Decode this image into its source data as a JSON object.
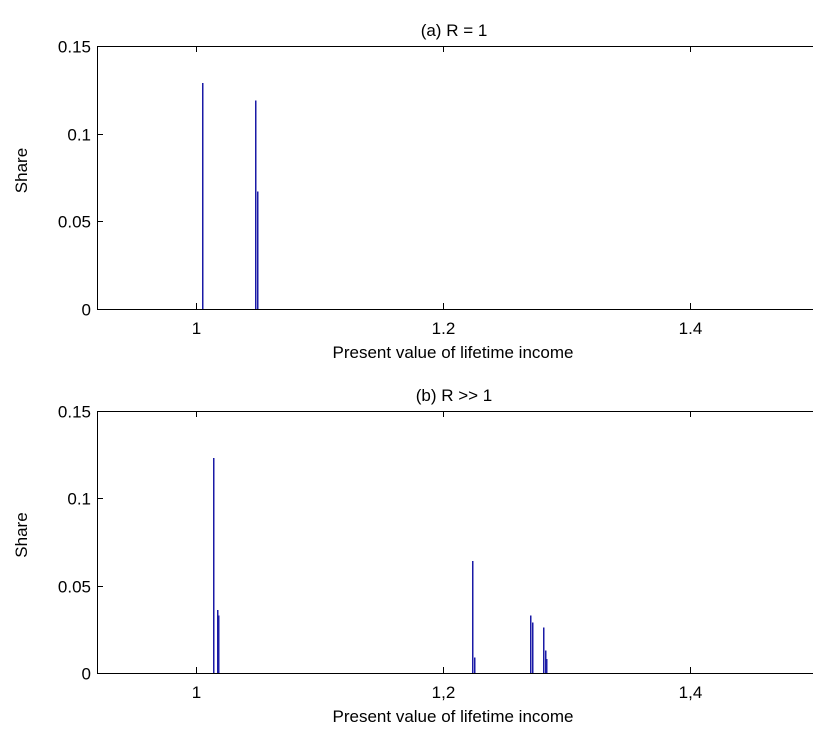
{
  "chart_data": [
    {
      "type": "bar",
      "title": "(a) R = 1",
      "xlabel": "Present value of lifetime income",
      "ylabel": "Share",
      "xlim": [
        0.92,
        1.5
      ],
      "ylim": [
        0,
        0.15
      ],
      "xticks": [
        1,
        1.2,
        1.4
      ],
      "xtick_labels": [
        "1",
        "1.2",
        "1.4"
      ],
      "yticks": [
        0,
        0.05,
        0.1,
        0.15
      ],
      "ytick_labels": [
        "0",
        "0.05",
        "0.1",
        "0.15"
      ],
      "grid": false,
      "bar_color": "#1a1aa6",
      "x": [
        1.005,
        1.048,
        1.05
      ],
      "values": [
        0.129,
        0.119,
        0.067
      ]
    },
    {
      "type": "bar",
      "title": "(b) R >> 1",
      "xlabel": "Present value of lifetime income",
      "ylabel": "Share",
      "xlim": [
        0.92,
        1.5
      ],
      "ylim": [
        0,
        0.15
      ],
      "xticks": [
        1,
        1.2,
        1.4
      ],
      "xtick_labels": [
        "1",
        "1,2",
        "1,4"
      ],
      "yticks": [
        0,
        0.05,
        0.1,
        0.15
      ],
      "ytick_labels": [
        "0",
        "0.05",
        "0.1",
        "0.15"
      ],
      "grid": false,
      "bar_color": "#1a1aa6",
      "x": [
        1.014,
        1.017,
        1.018,
        1.224,
        1.225,
        1.271,
        1.272,
        1.281,
        1.283,
        1.284
      ],
      "values": [
        0.123,
        0.036,
        0.033,
        0.064,
        0.009,
        0.033,
        0.029,
        0.026,
        0.013,
        0.008
      ]
    }
  ]
}
